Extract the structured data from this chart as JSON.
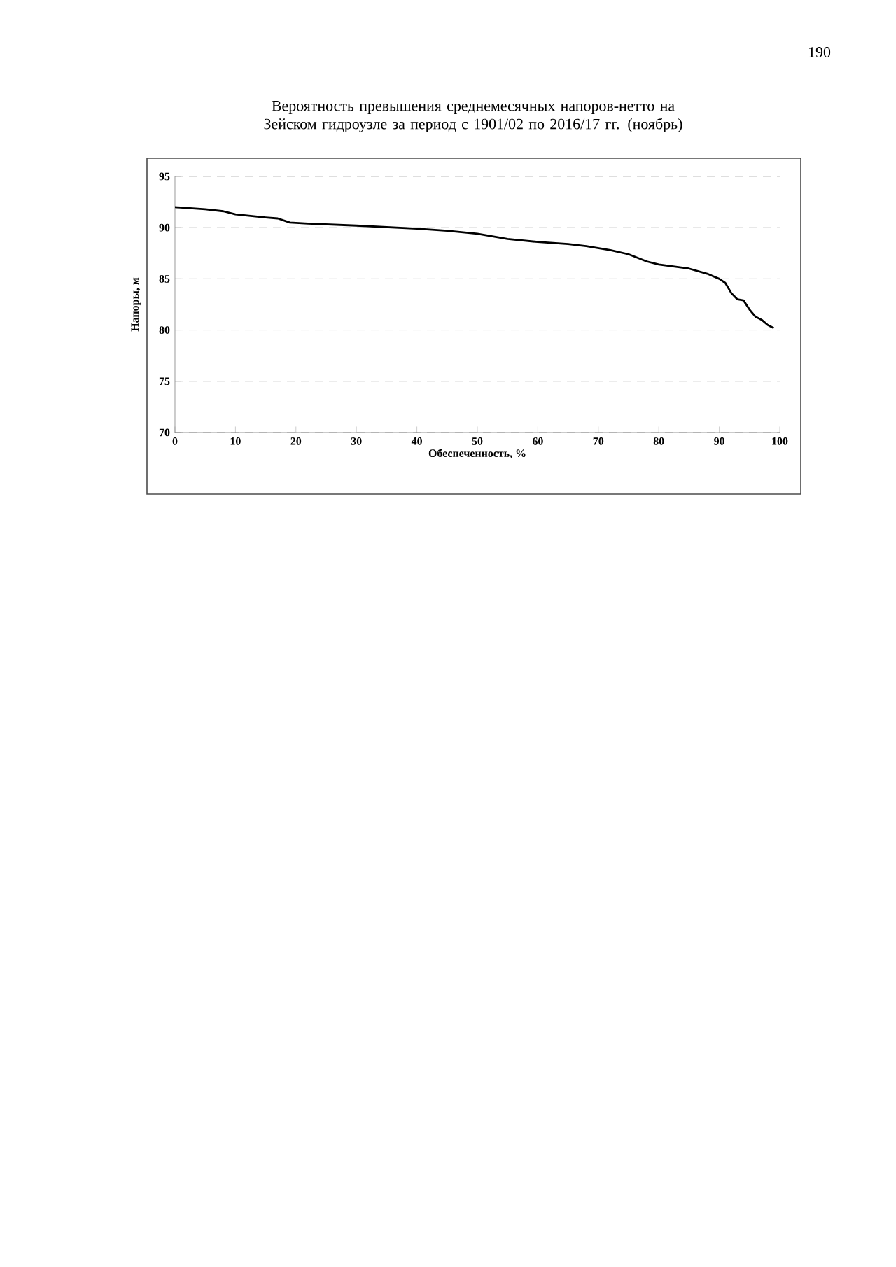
{
  "chart_data": {
    "type": "line",
    "title": "Вероятность превышения среднемесячных напоров-нетто на Зейском гидроузле за период с 1901/02 по 2016/17 гг. (ноябрь)",
    "xlabel": "Обеспеченность, %",
    "ylabel": "Напоры, м",
    "x": [
      0,
      5,
      8,
      10,
      15,
      17,
      19,
      22,
      30,
      40,
      45,
      50,
      55,
      60,
      65,
      68,
      72,
      75,
      78,
      80,
      85,
      88,
      90,
      91,
      92,
      93,
      94,
      95,
      96,
      97,
      98,
      99
    ],
    "series": [
      {
        "color": "#000000",
        "values": [
          92.0,
          91.8,
          91.6,
          91.3,
          91.0,
          90.9,
          90.5,
          90.4,
          90.2,
          89.9,
          89.7,
          89.4,
          88.9,
          88.6,
          88.4,
          88.2,
          87.8,
          87.4,
          86.7,
          86.4,
          86.0,
          85.5,
          85.0,
          84.6,
          83.6,
          83.0,
          82.9,
          82.0,
          81.3,
          81.0,
          80.5,
          80.2
        ]
      }
    ],
    "xlim": [
      0,
      100
    ],
    "ylim": [
      70,
      95
    ],
    "xticks": [
      0,
      10,
      20,
      30,
      40,
      50,
      60,
      70,
      80,
      90,
      100
    ],
    "yticks": [
      70,
      75,
      80,
      85,
      90,
      95
    ],
    "grid": "y",
    "marker": "none",
    "line_style": "solid",
    "annotations": [
      "190"
    ]
  }
}
